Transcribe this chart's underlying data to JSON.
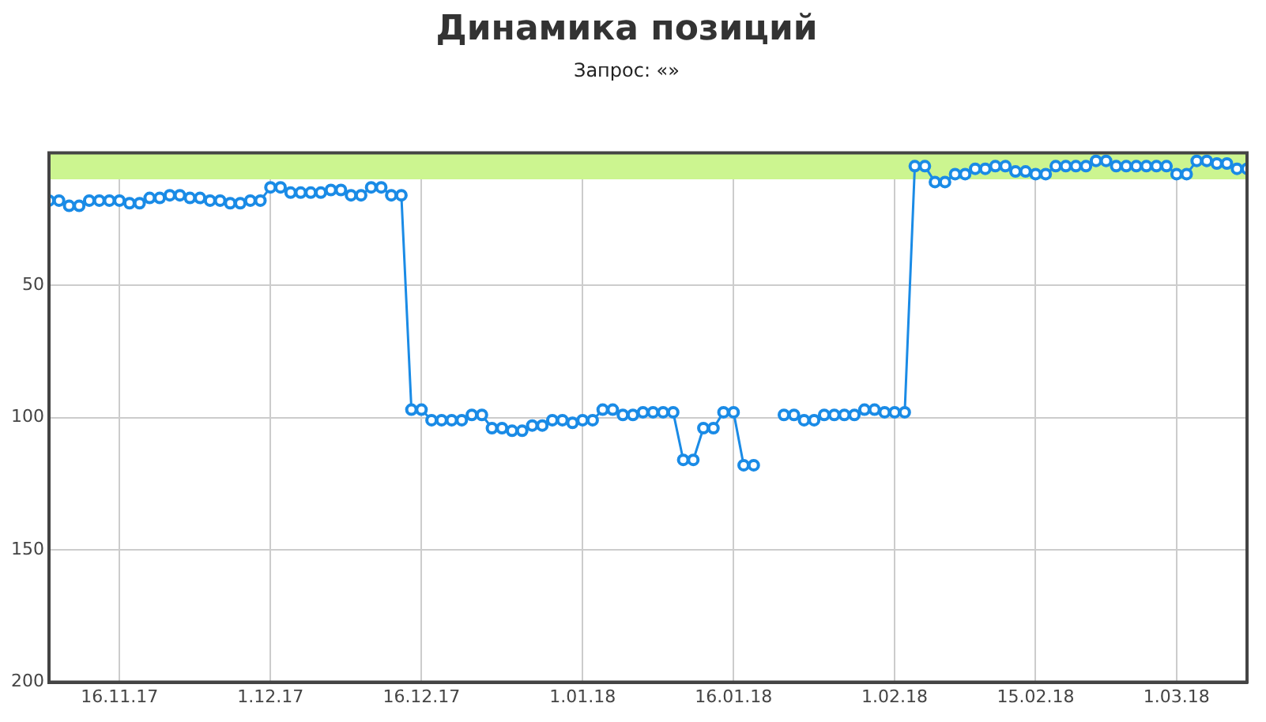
{
  "chart_data": {
    "type": "line",
    "title": "Динамика позиций",
    "subtitle": "Запрос: «»",
    "x": [
      "2017-11-09",
      "2017-11-10",
      "2017-11-11",
      "2017-11-12",
      "2017-11-13",
      "2017-11-14",
      "2017-11-15",
      "2017-11-16",
      "2017-11-17",
      "2017-11-18",
      "2017-11-19",
      "2017-11-20",
      "2017-11-21",
      "2017-11-22",
      "2017-11-23",
      "2017-11-24",
      "2017-11-25",
      "2017-11-26",
      "2017-11-27",
      "2017-11-28",
      "2017-11-29",
      "2017-11-30",
      "2017-12-01",
      "2017-12-02",
      "2017-12-03",
      "2017-12-04",
      "2017-12-05",
      "2017-12-06",
      "2017-12-07",
      "2017-12-08",
      "2017-12-09",
      "2017-12-10",
      "2017-12-11",
      "2017-12-12",
      "2017-12-13",
      "2017-12-14",
      "2017-12-15",
      "2017-12-16",
      "2017-12-17",
      "2017-12-18",
      "2017-12-19",
      "2017-12-20",
      "2017-12-21",
      "2017-12-22",
      "2017-12-23",
      "2017-12-24",
      "2017-12-25",
      "2017-12-26",
      "2017-12-27",
      "2017-12-28",
      "2017-12-29",
      "2017-12-30",
      "2017-12-31",
      "2018-01-01",
      "2018-01-02",
      "2018-01-03",
      "2018-01-04",
      "2018-01-05",
      "2018-01-06",
      "2018-01-07",
      "2018-01-08",
      "2018-01-09",
      "2018-01-10",
      "2018-01-11",
      "2018-01-12",
      "2018-01-13",
      "2018-01-14",
      "2018-01-15",
      "2018-01-16",
      "2018-01-17",
      "2018-01-18",
      "2018-01-19",
      "2018-01-20",
      "2018-01-21",
      "2018-01-22",
      "2018-01-23",
      "2018-01-24",
      "2018-01-25",
      "2018-01-26",
      "2018-01-27",
      "2018-01-28",
      "2018-01-29",
      "2018-01-30",
      "2018-01-31",
      "2018-02-01",
      "2018-02-02",
      "2018-02-03",
      "2018-02-04",
      "2018-02-05",
      "2018-02-06",
      "2018-02-07",
      "2018-02-08",
      "2018-02-09",
      "2018-02-10",
      "2018-02-11",
      "2018-02-12",
      "2018-02-13",
      "2018-02-14",
      "2018-02-15",
      "2018-02-16",
      "2018-02-17",
      "2018-02-18",
      "2018-02-19",
      "2018-02-20",
      "2018-02-21",
      "2018-02-22",
      "2018-02-23",
      "2018-02-24",
      "2018-02-25",
      "2018-02-26",
      "2018-02-27",
      "2018-02-28",
      "2018-03-01",
      "2018-03-02",
      "2018-03-03",
      "2018-03-04",
      "2018-03-05",
      "2018-03-06",
      "2018-03-07",
      "2018-03-08"
    ],
    "series": [
      {
        "color": "#1a8be6",
        "values": [
          18,
          18,
          20,
          20,
          18,
          18,
          18,
          18,
          19,
          19,
          17,
          17,
          16,
          16,
          17,
          17,
          18,
          18,
          19,
          19,
          18,
          18,
          13,
          13,
          15,
          15,
          15,
          15,
          14,
          14,
          16,
          16,
          13,
          13,
          16,
          16,
          97,
          97,
          101,
          101,
          101,
          101,
          99,
          99,
          104,
          104,
          105,
          105,
          103,
          103,
          101,
          101,
          102,
          101,
          101,
          97,
          97,
          99,
          99,
          98,
          98,
          98,
          98,
          116,
          116,
          104,
          104,
          98,
          98,
          118,
          118,
          null,
          null,
          99,
          99,
          101,
          101,
          99,
          99,
          99,
          99,
          97,
          97,
          98,
          98,
          98,
          5,
          5,
          11,
          11,
          8,
          8,
          6,
          6,
          5,
          5,
          7,
          7,
          8,
          8,
          5,
          5,
          5,
          5,
          3,
          3,
          5,
          5,
          5,
          5,
          5,
          5,
          8,
          8,
          3,
          3,
          4,
          4,
          6,
          6
        ]
      }
    ],
    "xlim": [
      "2017-11-09",
      "2018-03-08"
    ],
    "xticks": [
      {
        "value": "2017-11-16",
        "label": "16.11.17"
      },
      {
        "value": "2017-12-01",
        "label": "1.12.17"
      },
      {
        "value": "2017-12-16",
        "label": "16.12.17"
      },
      {
        "value": "2018-01-01",
        "label": "1.01.18"
      },
      {
        "value": "2018-01-16",
        "label": "16.01.18"
      },
      {
        "value": "2018-02-01",
        "label": "1.02.18"
      },
      {
        "value": "2018-02-15",
        "label": "15.02.18"
      },
      {
        "value": "2018-03-01",
        "label": "1.03.18"
      }
    ],
    "ylim": [
      200,
      0
    ],
    "yticks": [
      50,
      100,
      150,
      200
    ],
    "bands": [
      {
        "axis": "y",
        "from": 0,
        "to": 10,
        "color": "#ccf590"
      }
    ],
    "grid": true,
    "marker": "circle",
    "line_style": "solid"
  }
}
